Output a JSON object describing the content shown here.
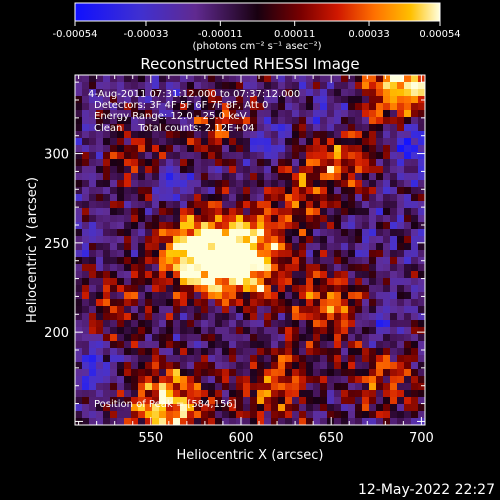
{
  "chart_data": {
    "type": "heatmap",
    "title": "Reconstructed RHESSI Image",
    "xlabel": "Heliocentric X (arcsec)",
    "ylabel": "Heliocentric Y (arcsec)",
    "xlim": [
      508,
      702
    ],
    "ylim": [
      148,
      344
    ],
    "x_ticks": [
      "550",
      "600",
      "650",
      "700"
    ],
    "y_ticks": [
      "200",
      "250",
      "300"
    ],
    "colorbar": {
      "ticks": [
        "-0.00054",
        "-0.00033",
        "-0.00011",
        "0.00011",
        "0.00033",
        "0.00054"
      ],
      "range": [
        -0.00054,
        0.00054
      ],
      "units": "(photons cm⁻² s⁻¹ asec⁻²)"
    },
    "annotations": [
      "4-Aug-2011 07:31:12.000 to 07:37:12.000",
      "Detectors: 3F 4F 5F 6F 7F 8F, Att 0",
      "Energy Range: 12.0 - 25.0 keV",
      "Clean     Total counts: 2.12E+04",
      "Position of Peak = [584,156]"
    ],
    "footer": "12-May-2022 22:27",
    "peak": [
      584,
      156
    ],
    "hot_regions": [
      {
        "x": 600,
        "y": 240,
        "strength": 1.0
      },
      {
        "x": 575,
        "y": 245,
        "strength": 0.85
      },
      {
        "x": 560,
        "y": 160,
        "strength": 0.8
      },
      {
        "x": 690,
        "y": 340,
        "strength": 0.85
      },
      {
        "x": 650,
        "y": 215,
        "strength": 0.55
      },
      {
        "x": 655,
        "y": 300,
        "strength": 0.5
      },
      {
        "x": 620,
        "y": 170,
        "strength": 0.5
      },
      {
        "x": 545,
        "y": 295,
        "strength": 0.4
      },
      {
        "x": 680,
        "y": 175,
        "strength": 0.45
      },
      {
        "x": 530,
        "y": 215,
        "strength": 0.35
      },
      {
        "x": 590,
        "y": 315,
        "strength": 0.35
      },
      {
        "x": 630,
        "y": 275,
        "strength": 0.4
      }
    ],
    "cold_regions": [
      {
        "x": 560,
        "y": 285,
        "strength": 0.9
      },
      {
        "x": 615,
        "y": 305,
        "strength": 0.7
      },
      {
        "x": 695,
        "y": 305,
        "strength": 0.9
      },
      {
        "x": 650,
        "y": 320,
        "strength": 0.6
      },
      {
        "x": 675,
        "y": 205,
        "strength": 0.7
      },
      {
        "x": 520,
        "y": 180,
        "strength": 0.6
      }
    ]
  }
}
